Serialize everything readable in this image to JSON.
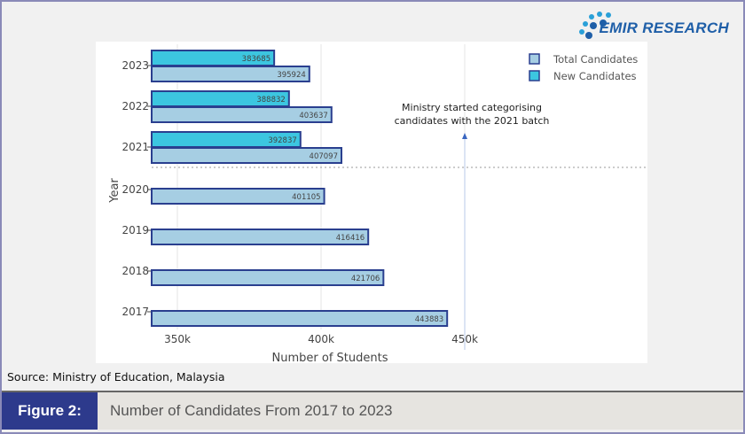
{
  "logo": {
    "text": "EMIR RESEARCH",
    "tm": "TM"
  },
  "source": "Source: Ministry of Education, Malaysia",
  "figure": {
    "label": "Figure 2:",
    "title": "Number of Candidates From 2017 to 2023"
  },
  "chart_data": {
    "type": "bar",
    "orientation": "horizontal",
    "categories": [
      "2023",
      "2022",
      "2021",
      "2020",
      "2019",
      "2018",
      "2017"
    ],
    "series": [
      {
        "name": "Total Candidates",
        "color": "#a6cee3",
        "values": [
          395924,
          403637,
          407097,
          401105,
          416416,
          421706,
          443883
        ]
      },
      {
        "name": "New Candidates",
        "color": "#3cc6e0",
        "values": [
          383685,
          388832,
          392837,
          null,
          null,
          null,
          null
        ]
      }
    ],
    "xlabel": "Number of Students",
    "ylabel": "Year",
    "xticks": [
      {
        "value": 350000,
        "label": "350k"
      },
      {
        "value": 400000,
        "label": "400k"
      },
      {
        "value": 450000,
        "label": "450k"
      }
    ],
    "xlim": [
      341000,
      480000
    ],
    "grid": true,
    "legend": "top-right",
    "bar_outline": "#2a3f8f",
    "annotation": {
      "text_lines": [
        "Ministry started categorising",
        "candidates with the 2021 batch"
      ],
      "x": 450000,
      "separator_between": [
        "2021",
        "2020"
      ]
    }
  }
}
